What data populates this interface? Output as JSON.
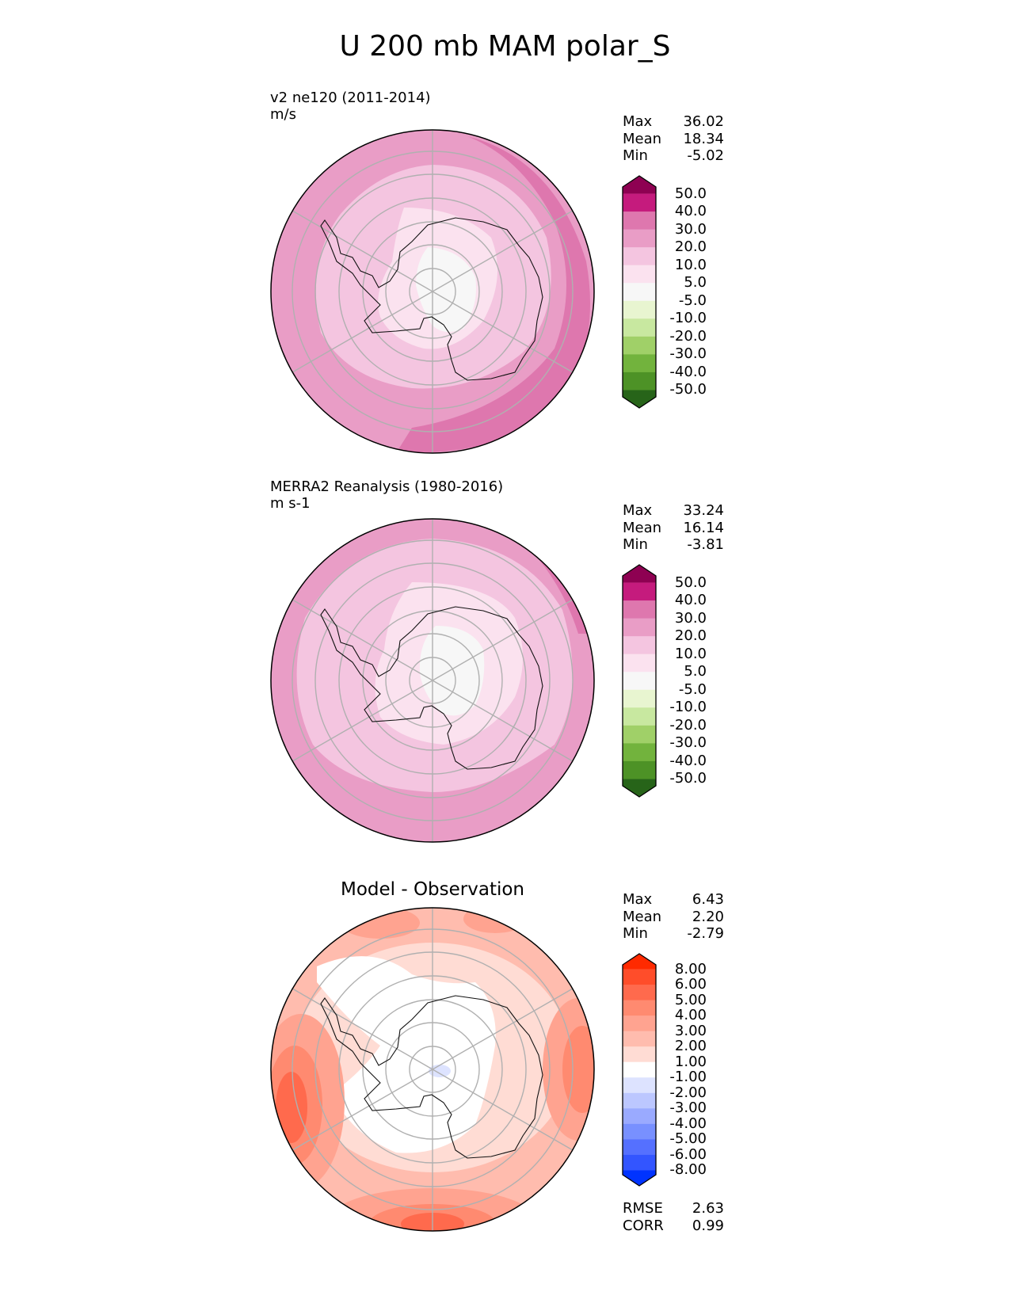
{
  "figure_title": "U 200 mb MAM polar_S",
  "chart_data": [
    {
      "type": "polar-contour",
      "projection": "south-polar stereographic",
      "title_lines": [
        "v2 ne120 (2011-2014)",
        "m/s"
      ],
      "stats": [
        {
          "label": "Max",
          "value": "36.02"
        },
        {
          "label": "Mean",
          "value": "18.34"
        },
        {
          "label": "Min",
          "value": "-5.02"
        }
      ],
      "colorbar": {
        "ticks": [
          "50.0",
          "40.0",
          "30.0",
          "20.0",
          "10.0",
          "5.0",
          "-5.0",
          "-10.0",
          "-20.0",
          "-30.0",
          "-40.0",
          "-50.0"
        ],
        "colors": [
          "#8e0152",
          "#c51b7d",
          "#de77ae",
          "#e99dc6",
          "#f4c5e0",
          "#fbe2ef",
          "#f7f7f7",
          "#e8f5d0",
          "#c8e8a0",
          "#a0d068",
          "#72b33d",
          "#4d9226",
          "#276419"
        ]
      }
    },
    {
      "type": "polar-contour",
      "projection": "south-polar stereographic",
      "title_lines": [
        "MERRA2 Reanalysis (1980-2016)",
        "m s-1"
      ],
      "stats": [
        {
          "label": "Max",
          "value": "33.24"
        },
        {
          "label": "Mean",
          "value": "16.14"
        },
        {
          "label": "Min",
          "value": "-3.81"
        }
      ],
      "colorbar": {
        "ticks": [
          "50.0",
          "40.0",
          "30.0",
          "20.0",
          "10.0",
          "5.0",
          "-5.0",
          "-10.0",
          "-20.0",
          "-30.0",
          "-40.0",
          "-50.0"
        ],
        "colors": [
          "#8e0152",
          "#c51b7d",
          "#de77ae",
          "#e99dc6",
          "#f4c5e0",
          "#fbe2ef",
          "#f7f7f7",
          "#e8f5d0",
          "#c8e8a0",
          "#a0d068",
          "#72b33d",
          "#4d9226",
          "#276419"
        ]
      }
    },
    {
      "type": "polar-contour",
      "projection": "south-polar stereographic",
      "title": "Model - Observation",
      "stats": [
        {
          "label": "Max",
          "value": "6.43"
        },
        {
          "label": "Mean",
          "value": "2.20"
        },
        {
          "label": "Min",
          "value": "-2.79"
        }
      ],
      "footer": [
        {
          "label": "RMSE",
          "value": "2.63"
        },
        {
          "label": "CORR",
          "value": "0.99"
        }
      ],
      "colorbar": {
        "ticks": [
          "8.00",
          "6.00",
          "5.00",
          "4.00",
          "3.00",
          "2.00",
          "1.00",
          "-1.00",
          "-2.00",
          "-3.00",
          "-4.00",
          "-5.00",
          "-6.00",
          "-8.00"
        ],
        "colors": [
          "#ff2a00",
          "#ff4d2a",
          "#ff6a4d",
          "#ff8a70",
          "#ffa390",
          "#ffbcae",
          "#ffdcd4",
          "#ffffff",
          "#dde3ff",
          "#bcc7ff",
          "#9aaaff",
          "#7890ff",
          "#5570ff",
          "#3355ff",
          "#0033ff"
        ]
      }
    }
  ]
}
